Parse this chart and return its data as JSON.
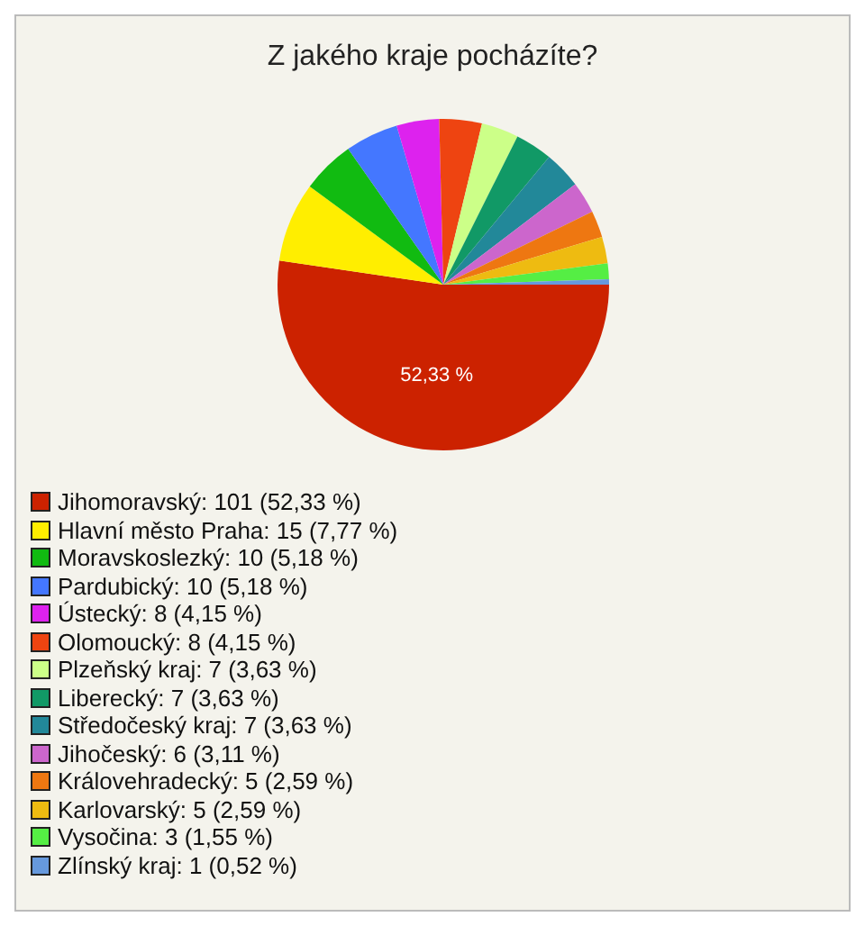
{
  "chart_data": {
    "type": "pie",
    "title": "Z jakého kraje pocházíte?",
    "categories": [
      "Jihomoravský: 101 (52,33 %)",
      "Hlavní město Praha: 15 (7,77 %)",
      "Moravskoslezký: 10 (5,18 %)",
      "Pardubický: 10 (5,18 %)",
      "Ústecký: 8 (4,15 %)",
      "Olomoucký: 8 (4,15 %)",
      "Plzeňský kraj: 7 (3,63 %)",
      "Liberecký: 7 (3,63 %)",
      "Středočeský kraj: 7 (3,63 %)",
      "Jihočeský: 6 (3,11 %)",
      "Královehradecký: 5 (2,59 %)",
      "Karlovarský: 5 (2,59 %)",
      "Vysočina: 3 (1,55 %)",
      "Zlínský kraj: 1 (0,52 %)"
    ],
    "values": [
      52.33,
      7.77,
      5.18,
      5.18,
      4.15,
      4.15,
      3.63,
      3.63,
      3.63,
      3.11,
      2.59,
      2.59,
      1.55,
      0.52
    ],
    "colors": [
      "#cc2200",
      "#ffee00",
      "#11bb11",
      "#4477ff",
      "#dd22ee",
      "#ee4411",
      "#ccff88",
      "#119966",
      "#228899",
      "#cc66cc",
      "#ee7711",
      "#eebb11",
      "#55ee44",
      "#6699dd"
    ],
    "value_labels": [
      "52,33 %",
      null,
      null,
      null,
      null,
      null,
      null,
      null,
      null,
      null,
      null,
      null,
      null,
      null
    ],
    "legend": "bottom left"
  }
}
